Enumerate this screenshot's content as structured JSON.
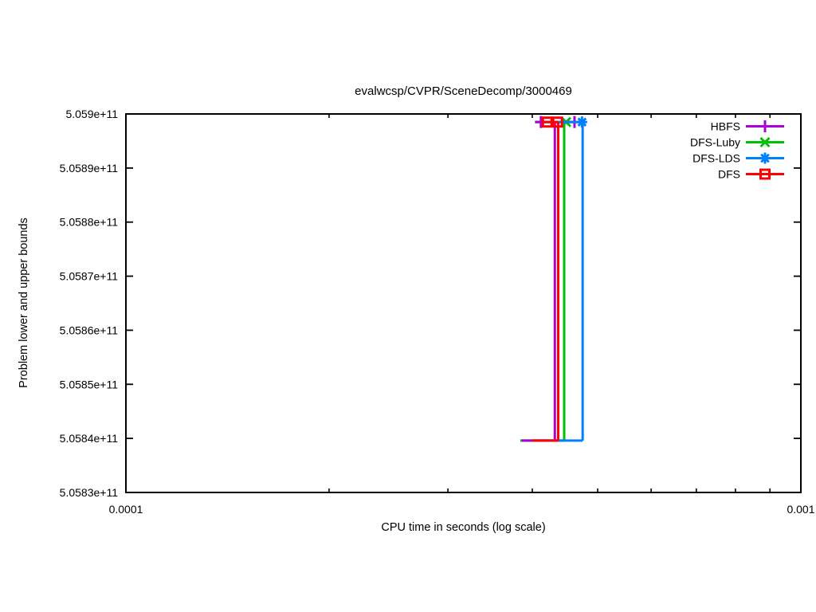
{
  "chart_data": {
    "type": "line",
    "title": "evalwcsp/CVPR/SceneDecomp/3000469",
    "xlabel": "CPU time in seconds (log scale)",
    "ylabel": "Problem lower and upper bounds",
    "x_scale": "log",
    "grid": false,
    "legend_position": "top right",
    "xlim": [
      0.0001,
      0.001
    ],
    "ylim": [
      505830000000,
      505900000000
    ],
    "x_ticks": [
      {
        "value": 0.0001,
        "label": "0.0001"
      },
      {
        "value": 0.001,
        "label": "0.001"
      }
    ],
    "x_minor_ticks": [
      0.0002,
      0.0003,
      0.0004,
      0.0005,
      0.0006,
      0.0007,
      0.0008,
      0.0009
    ],
    "y_ticks": [
      {
        "value": 505900000000,
        "label": "5.059e+11"
      },
      {
        "value": 505890000000,
        "label": "5.0589e+11"
      },
      {
        "value": 505880000000,
        "label": "5.0588e+11"
      },
      {
        "value": 505870000000,
        "label": "5.0587e+11"
      },
      {
        "value": 505860000000,
        "label": "5.0586e+11"
      },
      {
        "value": 505850000000,
        "label": "5.0585e+11"
      },
      {
        "value": 505840000000,
        "label": "5.0584e+11"
      },
      {
        "value": 505830000000,
        "label": "5.0583e+11"
      }
    ],
    "upper_bound_value": 505898500000,
    "lower_bound_value": 505839600000,
    "series": [
      {
        "name": "HBFS",
        "color": "#aa00d4",
        "marker": "plus",
        "z": 2,
        "lower_start": 0.000386,
        "jump_time": 0.000432,
        "upper_start": 0.000404,
        "upper_end": 0.000465,
        "solution_markers": [
          0.000412,
          0.000462
        ]
      },
      {
        "name": "DFS-Luby",
        "color": "#00c000",
        "marker": "cross",
        "z": 1,
        "lower_start": 0.000384,
        "jump_time": 0.000446,
        "upper_start": 0.000441,
        "upper_end": 0.00045,
        "solution_markers": [
          0.000449
        ]
      },
      {
        "name": "DFS-LDS",
        "color": "#0080ff",
        "marker": "star",
        "z": 3,
        "lower_start": 0.000405,
        "jump_time": 0.000475,
        "upper_start": 0.000417,
        "upper_end": 0.000475,
        "solution_markers": [
          0.000474
        ]
      },
      {
        "name": "DFS",
        "color": "#ff0000",
        "marker": "square",
        "z": 4,
        "lower_start": 0.0004,
        "jump_time": 0.000437,
        "upper_start": 0.000417,
        "upper_end": 0.000437,
        "solution_markers": [
          0.000421,
          0.000436
        ]
      }
    ],
    "colors": {
      "foreground": "#000000",
      "background": "#ffffff"
    }
  }
}
